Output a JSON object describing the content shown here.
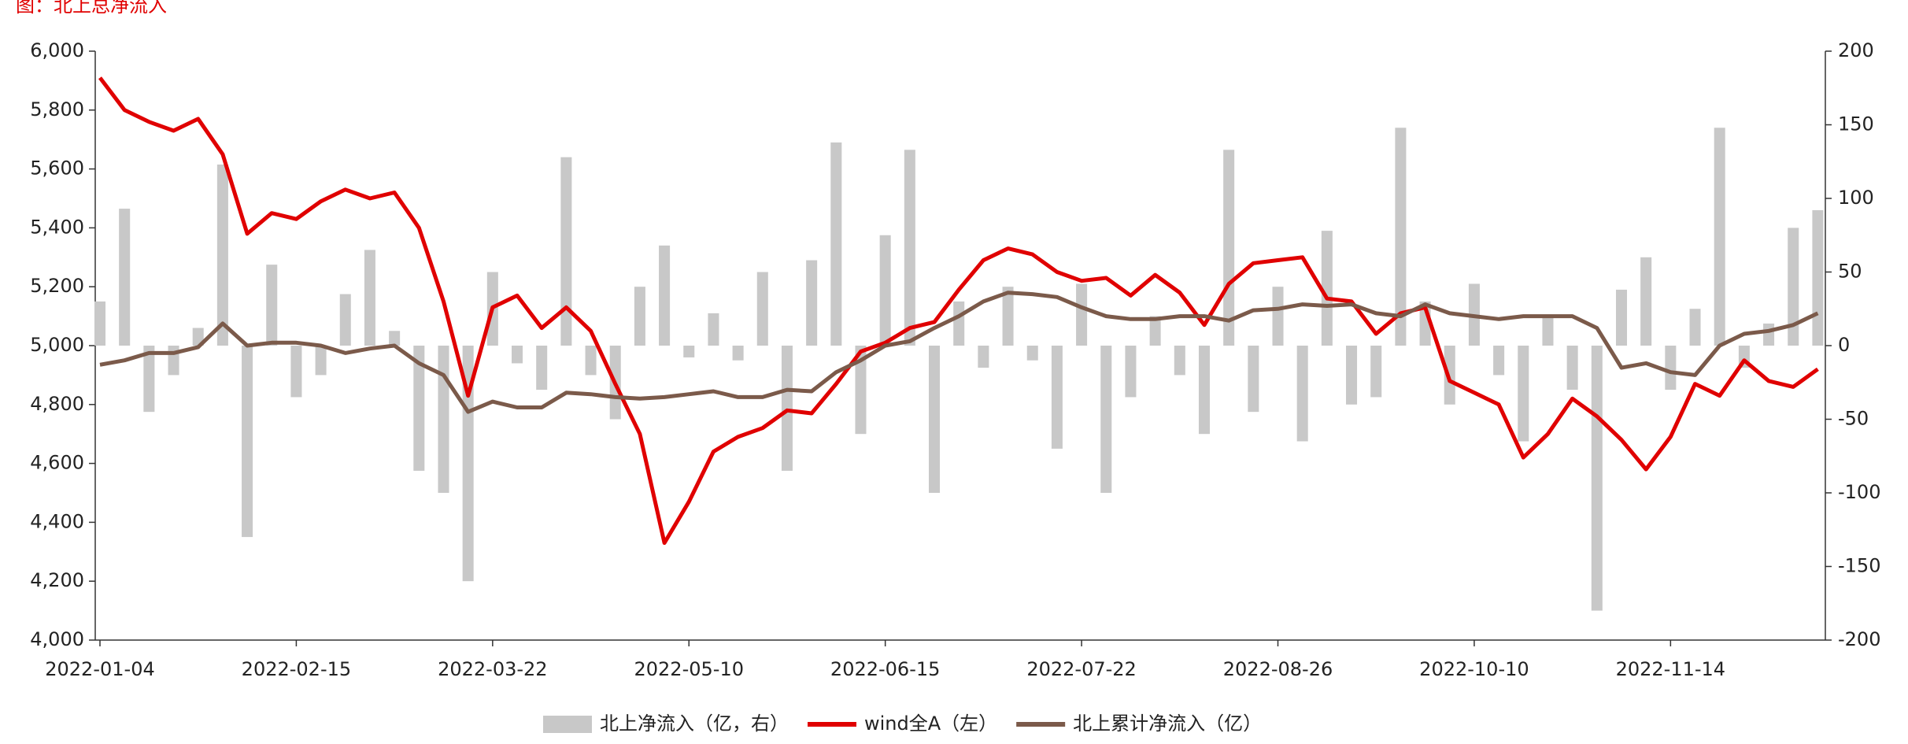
{
  "chart_data": {
    "type": "bar",
    "title": "图：北上总净流入",
    "categories": [
      "2022-01-04",
      null,
      null,
      null,
      null,
      null,
      null,
      null,
      "2022-02-15",
      null,
      null,
      null,
      null,
      null,
      null,
      null,
      "2022-03-22",
      null,
      null,
      null,
      null,
      null,
      null,
      null,
      "2022-05-10",
      null,
      null,
      null,
      null,
      null,
      null,
      null,
      "2022-06-15",
      null,
      null,
      null,
      null,
      null,
      null,
      null,
      "2022-07-22",
      null,
      null,
      null,
      null,
      null,
      null,
      null,
      "2022-08-26",
      null,
      null,
      null,
      null,
      null,
      null,
      null,
      "2022-10-10",
      null,
      null,
      null,
      null,
      null,
      null,
      null,
      "2022-11-14",
      null,
      null,
      null,
      null,
      null,
      null
    ],
    "series": [
      {
        "name": "北上净流入（亿，右）",
        "type": "bar",
        "axis": "y2",
        "color": "#c8c8c8",
        "values": [
          30,
          93,
          -45,
          -20,
          12,
          123,
          -130,
          55,
          -35,
          -20,
          35,
          65,
          10,
          -85,
          -100,
          -160,
          50,
          -12,
          -30,
          128,
          -20,
          -50,
          40,
          68,
          -8,
          22,
          -10,
          50,
          -85,
          58,
          138,
          -60,
          75,
          133,
          -100,
          30,
          -15,
          40,
          -10,
          -70,
          42,
          -100,
          -35,
          20,
          -20,
          -60,
          133,
          -45,
          40,
          -65,
          78,
          -40,
          -35,
          148,
          30,
          -40,
          42,
          -20,
          -65,
          20,
          -30,
          -180,
          38,
          60,
          -30,
          25,
          148,
          -15,
          15,
          80,
          92
        ]
      },
      {
        "name": "wind全A（左）",
        "type": "line",
        "color": "#e00000",
        "values": [
          5910,
          5800,
          5760,
          5730,
          5770,
          5650,
          5380,
          5450,
          5430,
          5490,
          5530,
          5500,
          5520,
          5400,
          5150,
          4830,
          5130,
          5170,
          5060,
          5130,
          5050,
          4870,
          4700,
          4330,
          4470,
          4640,
          4690,
          4720,
          4780,
          4770,
          4870,
          4980,
          5010,
          5060,
          5080,
          5190,
          5290,
          5330,
          5310,
          5250,
          5220,
          5230,
          5170,
          5240,
          5180,
          5070,
          5210,
          5280,
          5290,
          5300,
          5160,
          5150,
          5040,
          5110,
          5130,
          4880,
          4840,
          4800,
          4620,
          4700,
          4820,
          4760,
          4680,
          4580,
          4690,
          4870,
          4830,
          4950,
          4880,
          4860,
          4920
        ]
      },
      {
        "name": "北上累计净流入（亿）",
        "type": "line",
        "axis": "y2",
        "color": "#7b5a4a",
        "values": [
          -13,
          -10,
          -5,
          -5,
          -1,
          15,
          0,
          2,
          2,
          0,
          -5,
          -2,
          0,
          -12,
          -20,
          -45,
          -38,
          -42,
          -42,
          -32,
          -33,
          -35,
          -36,
          -35,
          -33,
          -31,
          -35,
          -35,
          -30,
          -31,
          -18,
          -10,
          0,
          3,
          12,
          20,
          30,
          36,
          35,
          33,
          26,
          20,
          18,
          18,
          20,
          20,
          17,
          24,
          25,
          28,
          27,
          28,
          22,
          20,
          28,
          22,
          20,
          18,
          20,
          20,
          20,
          12,
          -15,
          -12,
          -18,
          -20,
          0,
          8,
          10,
          14,
          22
        ]
      }
    ],
    "ylim": [
      4000,
      6000
    ],
    "yticks": [
      {
        "value": 4000,
        "label": "4,000"
      },
      {
        "value": 4200,
        "label": "4,200"
      },
      {
        "value": 4400,
        "label": "4,400"
      },
      {
        "value": 4600,
        "label": "4,600"
      },
      {
        "value": 4800,
        "label": "4,800"
      },
      {
        "value": 5000,
        "label": "5,000"
      },
      {
        "value": 5200,
        "label": "5,200"
      },
      {
        "value": 5400,
        "label": "5,400"
      },
      {
        "value": 5600,
        "label": "5,600"
      },
      {
        "value": 5800,
        "label": "5,800"
      },
      {
        "value": 6000,
        "label": "6,000"
      }
    ],
    "y2lim": [
      -200,
      200
    ],
    "y2ticks": [
      -200,
      -150,
      -100,
      -50,
      0,
      50,
      100,
      150,
      200
    ],
    "legend": "bottom"
  }
}
